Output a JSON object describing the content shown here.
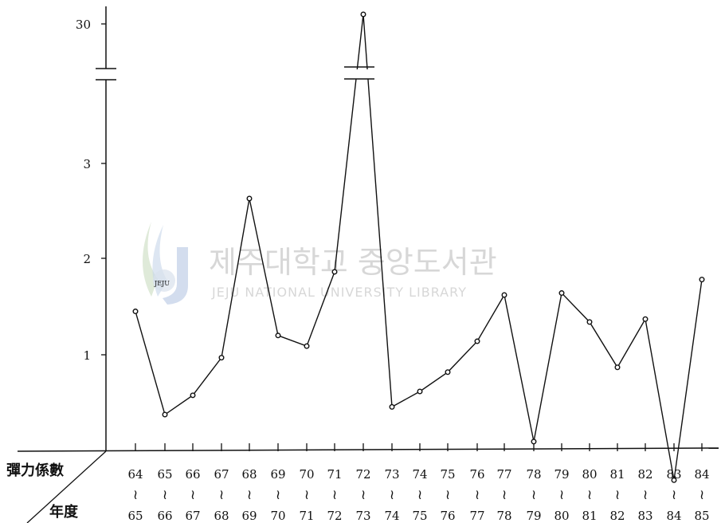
{
  "chart_data": {
    "type": "line",
    "title": "",
    "xlabel": "年度",
    "ylabel": "彈力係數",
    "y_ticks": [
      "1",
      "2",
      "3",
      "30"
    ],
    "y_axis_break": true,
    "categories": [
      {
        "start": "64",
        "sep": "≀",
        "end": "65"
      },
      {
        "start": "65",
        "sep": "≀",
        "end": "66"
      },
      {
        "start": "66",
        "sep": "≀",
        "end": "67"
      },
      {
        "start": "67",
        "sep": "≀",
        "end": "68"
      },
      {
        "start": "68",
        "sep": "≀",
        "end": "69"
      },
      {
        "start": "69",
        "sep": "≀",
        "end": "70"
      },
      {
        "start": "70",
        "sep": "≀",
        "end": "71"
      },
      {
        "start": "71",
        "sep": "≀",
        "end": "72"
      },
      {
        "start": "72",
        "sep": "≀",
        "end": "73"
      },
      {
        "start": "73",
        "sep": "≀",
        "end": "74"
      },
      {
        "start": "74",
        "sep": "≀",
        "end": "75"
      },
      {
        "start": "75",
        "sep": "≀",
        "end": "76"
      },
      {
        "start": "76",
        "sep": "≀",
        "end": "77"
      },
      {
        "start": "77",
        "sep": "≀",
        "end": "78"
      },
      {
        "start": "78",
        "sep": "≀",
        "end": "79"
      },
      {
        "start": "79",
        "sep": "≀",
        "end": "80"
      },
      {
        "start": "80",
        "sep": "≀",
        "end": "81"
      },
      {
        "start": "81",
        "sep": "≀",
        "end": "82"
      },
      {
        "start": "82",
        "sep": "≀",
        "end": "83"
      },
      {
        "start": "83",
        "sep": "≀",
        "end": "84"
      },
      {
        "start": "84",
        "sep": "≀",
        "end": "85"
      }
    ],
    "values": [
      1.45,
      0.38,
      0.58,
      0.97,
      2.62,
      1.2,
      1.09,
      1.86,
      31.0,
      0.46,
      0.62,
      0.82,
      1.14,
      1.62,
      0.1,
      1.64,
      1.34,
      0.87,
      1.37,
      -0.3,
      1.78
    ],
    "grid": false,
    "legend": "none",
    "color": "#111111"
  },
  "watermark": {
    "logo_text": "JEJU",
    "title": "제주대학교 중앙도서관",
    "subtitle": "JEJU NATIONAL UNIVERSITY LIBRARY"
  }
}
